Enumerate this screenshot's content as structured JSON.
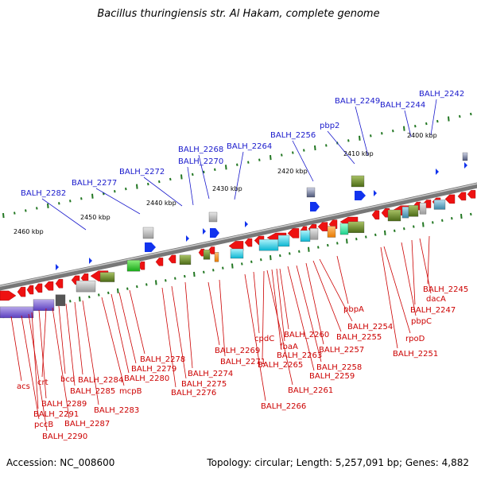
{
  "title": "Bacillus thuringiensis str. Al Hakam, complete genome",
  "footer": {
    "accession": "Accession: NC_008600",
    "topology": "Topology: circular; Length: 5,257,091 bp; Genes: 4,882"
  },
  "kbp_ticks": [
    "2400 kbp",
    "2410 kbp",
    "2420 kbp",
    "2430 kbp",
    "2440 kbp",
    "2450 kbp",
    "2460 kbp"
  ],
  "top_labels": [
    "BALH_2242",
    "BALH_2244",
    "BALH_2249",
    "pbp2",
    "BALH_2256",
    "BALH_2264",
    "BALH_2268",
    "BALH_2270",
    "BALH_2272",
    "BALH_2277",
    "BALH_2282"
  ],
  "bottom_labels": [
    "BALH_2245",
    "dacA",
    "BALH_2247",
    "pbpC",
    "rpoD",
    "BALH_2251",
    "pbpA",
    "BALH_2254",
    "BALH_2255",
    "BALH_2257",
    "BALH_2258",
    "BALH_2259",
    "BALH_2260",
    "BALH_2263",
    "fbaA",
    "BALH_2261",
    "BALH_2265",
    "cpdC",
    "BALH_2266",
    "BALH_2269",
    "BALH_2271",
    "BALH_2274",
    "BALH_2275",
    "BALH_2276",
    "BALH_2278",
    "BALH_2279",
    "BALH_2280",
    "mcpB",
    "BALH_2283",
    "BALH_2284",
    "BALH_2285",
    "bcd",
    "BALH_2287",
    "crt",
    "BALH_2289",
    "BALH_2291",
    "BALH_2290",
    "pccB",
    "acs"
  ],
  "colors": {
    "top_label": "#1a1acc",
    "bottom_label": "#cc0000",
    "backbone": "#888888",
    "gene_red": "#ee1111",
    "gene_blue": "#1133ee",
    "tick_green": "#227722"
  }
}
